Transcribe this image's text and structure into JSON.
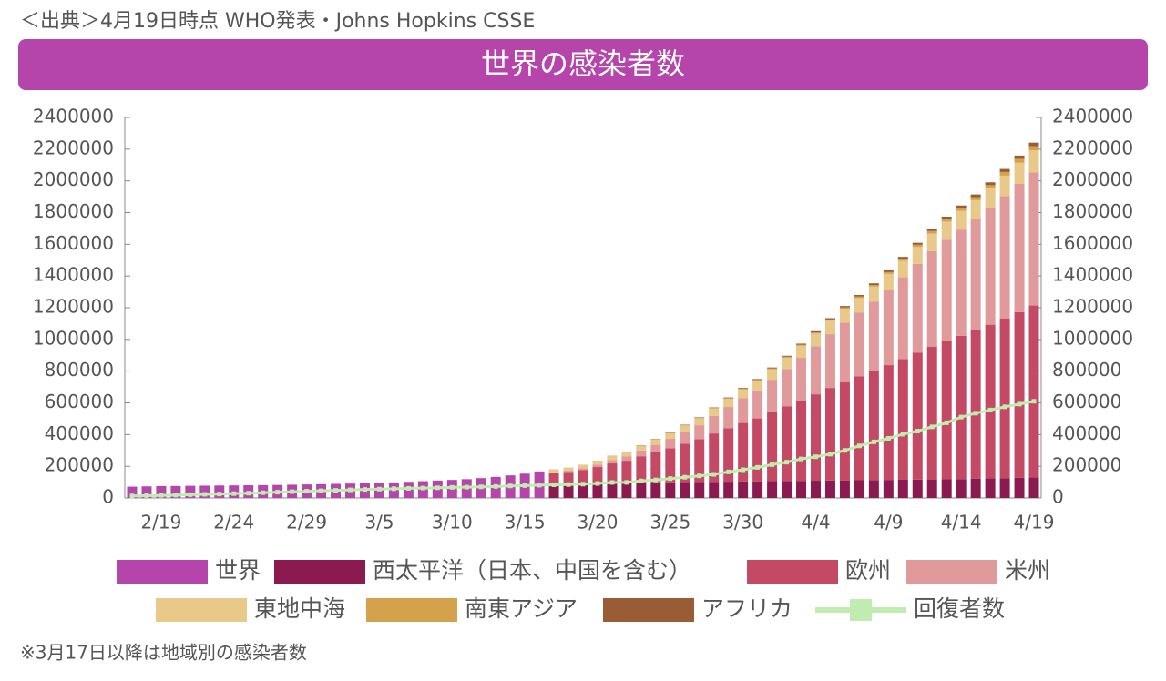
{
  "source": "＜出典＞4月19日時点 WHO発表・Johns Hopkins CSSE",
  "footnote": "※3月17日以降は地域別の感染者数",
  "chart_data": {
    "type": "bar",
    "stacked": true,
    "title": "世界の感染者数",
    "categories": [
      null,
      null,
      "2/19",
      null,
      null,
      null,
      null,
      "2/24",
      null,
      null,
      null,
      null,
      "2/29",
      null,
      null,
      null,
      null,
      "3/5",
      null,
      null,
      null,
      null,
      "3/10",
      null,
      null,
      null,
      null,
      "3/15",
      null,
      null,
      null,
      null,
      "3/20",
      null,
      null,
      null,
      null,
      "3/25",
      null,
      null,
      null,
      null,
      "3/30",
      null,
      null,
      null,
      null,
      "4/4",
      null,
      null,
      null,
      null,
      "4/9",
      null,
      null,
      null,
      null,
      "4/14",
      null,
      null,
      null,
      null,
      "4/19"
    ],
    "ylim": [
      0,
      2400000
    ],
    "yticks": [
      0,
      200000,
      400000,
      600000,
      800000,
      1000000,
      1200000,
      1400000,
      1600000,
      1800000,
      2000000,
      2200000,
      2400000
    ],
    "y2lim": [
      0,
      2400000
    ],
    "y2ticks": [
      0,
      200000,
      400000,
      600000,
      800000,
      1000000,
      1200000,
      1400000,
      1600000,
      1800000,
      2000000,
      2200000,
      2400000
    ],
    "series": [
      {
        "name": "世界",
        "color": "#b545ab",
        "values": [
          71400,
          73300,
          75200,
          75700,
          76800,
          77800,
          78800,
          79300,
          80200,
          81100,
          82300,
          83700,
          85400,
          87100,
          89100,
          90900,
          93100,
          95300,
          98200,
          102000,
          106000,
          110000,
          114000,
          118600,
          125300,
          132800,
          142500,
          153500,
          167500,
          null,
          null,
          null,
          null,
          null,
          null,
          null,
          null,
          null,
          null,
          null,
          null,
          null,
          null,
          null,
          null,
          null,
          null,
          null,
          null,
          null,
          null,
          null,
          null,
          null,
          null,
          null,
          null,
          null,
          null,
          null,
          null,
          null,
          null
        ]
      },
      {
        "name": "西太平洋（日本、中国を含む）",
        "color": "#8b1a50",
        "values": [
          null,
          null,
          null,
          null,
          null,
          null,
          null,
          null,
          null,
          null,
          null,
          null,
          null,
          null,
          null,
          null,
          null,
          null,
          null,
          null,
          null,
          null,
          null,
          null,
          null,
          null,
          null,
          null,
          null,
          91000,
          92000,
          93000,
          94000,
          95000,
          96000,
          97000,
          98000,
          99000,
          100000,
          101000,
          102000,
          103000,
          104000,
          105000,
          106000,
          107000,
          108000,
          109000,
          110000,
          111000,
          112000,
          113000,
          114000,
          115000,
          116000,
          117000,
          118000,
          119000,
          121000,
          123000,
          125000,
          127000,
          130000
        ]
      },
      {
        "name": "欧州",
        "color": "#c44965",
        "values": [
          null,
          null,
          null,
          null,
          null,
          null,
          null,
          null,
          null,
          null,
          null,
          null,
          null,
          null,
          null,
          null,
          null,
          null,
          null,
          null,
          null,
          null,
          null,
          null,
          null,
          null,
          null,
          null,
          null,
          65000,
          72000,
          84000,
          101000,
          123000,
          139000,
          166000,
          190000,
          215000,
          243000,
          270000,
          305000,
          337000,
          369000,
          397000,
          434000,
          470000,
          508000,
          545000,
          584000,
          620000,
          655000,
          688000,
          724000,
          761000,
          800000,
          838000,
          873000,
          904000,
          936000,
          970000,
          1008000,
          1045000,
          1084000
        ]
      },
      {
        "name": "米州",
        "color": "#e09a9c",
        "values": [
          null,
          null,
          null,
          null,
          null,
          null,
          null,
          null,
          null,
          null,
          null,
          null,
          null,
          null,
          null,
          null,
          null,
          null,
          null,
          null,
          null,
          null,
          null,
          null,
          null,
          null,
          null,
          null,
          null,
          6000,
          8000,
          10000,
          15000,
          21000,
          28000,
          37000,
          47000,
          59000,
          74000,
          88000,
          110000,
          134000,
          156000,
          177000,
          206000,
          237000,
          268000,
          303000,
          339000,
          374000,
          403000,
          438000,
          476000,
          516000,
          560000,
          602000,
          638000,
          670000,
          700000,
          734000,
          771000,
          809000,
          840000
        ]
      },
      {
        "name": "東地中海",
        "color": "#e8c98a",
        "values": [
          null,
          null,
          null,
          null,
          null,
          null,
          null,
          null,
          null,
          null,
          null,
          null,
          null,
          null,
          null,
          null,
          null,
          null,
          null,
          null,
          null,
          null,
          null,
          null,
          null,
          null,
          null,
          null,
          null,
          17000,
          18000,
          20000,
          22000,
          25000,
          27000,
          30000,
          33000,
          36000,
          40000,
          44000,
          47000,
          52000,
          56000,
          61000,
          66000,
          71000,
          76000,
          80000,
          85000,
          88000,
          91000,
          94000,
          99000,
          104000,
          107000,
          111000,
          114000,
          118000,
          121000,
          125000,
          129000,
          133000,
          138000
        ]
      },
      {
        "name": "南東アジア",
        "color": "#d4a24c",
        "values": [
          null,
          null,
          null,
          null,
          null,
          null,
          null,
          null,
          null,
          null,
          null,
          null,
          null,
          null,
          null,
          null,
          null,
          null,
          null,
          null,
          null,
          null,
          null,
          null,
          null,
          null,
          null,
          null,
          null,
          700,
          800,
          1000,
          1000,
          1200,
          1300,
          1500,
          2000,
          2300,
          2600,
          3000,
          3400,
          3800,
          4300,
          5000,
          5500,
          6000,
          6700,
          7500,
          8000,
          8800,
          9700,
          10500,
          11600,
          12800,
          14000,
          15500,
          16800,
          18000,
          19500,
          21000,
          23000,
          25000,
          27000
        ]
      },
      {
        "name": "アフリカ",
        "color": "#9a5c35",
        "values": [
          null,
          null,
          null,
          null,
          null,
          null,
          null,
          null,
          null,
          null,
          null,
          null,
          null,
          null,
          null,
          null,
          null,
          null,
          null,
          null,
          null,
          null,
          null,
          null,
          null,
          null,
          null,
          null,
          null,
          400,
          500,
          700,
          900,
          1000,
          1200,
          1500,
          1800,
          2200,
          2600,
          3000,
          3500,
          4000,
          4500,
          5000,
          5500,
          6000,
          6700,
          7300,
          8000,
          8800,
          9500,
          10300,
          11000,
          11800,
          12600,
          13500,
          14500,
          15500,
          16500,
          17800,
          19000,
          20500,
          22000
        ]
      },
      {
        "name": "回復者数",
        "type": "line",
        "axis": "y2",
        "color": "#c0ecb0",
        "values": [
          12600,
          14400,
          16100,
          18200,
          20700,
          22900,
          24900,
          27700,
          30400,
          33300,
          36700,
          39800,
          42700,
          45600,
          48200,
          51200,
          53800,
          55900,
          58400,
          60700,
          62500,
          64400,
          67000,
          68300,
          70300,
          72600,
          76000,
          78100,
          80800,
          83300,
          84900,
          87400,
          91700,
          97900,
          98300,
          107700,
          113800,
          122200,
          130900,
          139400,
          149100,
          164600,
          178000,
          193200,
          210300,
          225800,
          246200,
          260000,
          276500,
          300000,
          328700,
          353900,
          376100,
          402100,
          421700,
          448700,
          474300,
          510200,
          535000,
          555000,
          575000,
          592000,
          610000
        ]
      }
    ]
  }
}
